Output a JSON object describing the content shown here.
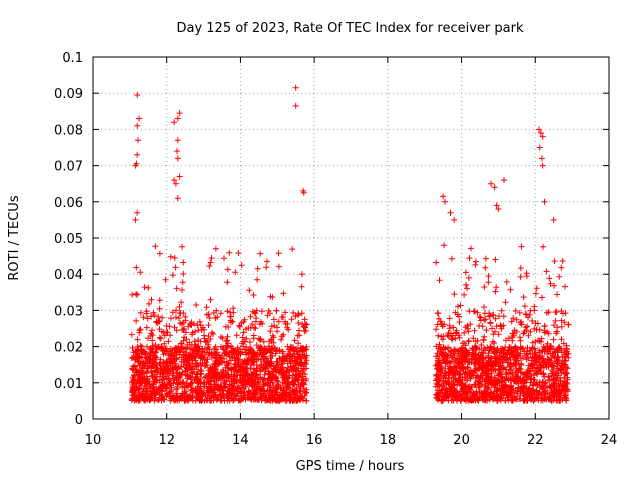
{
  "chart_data": {
    "type": "scatter",
    "title": "Day 125 of 2023, Rate Of TEC Index for receiver park",
    "xlabel": "GPS time / hours",
    "ylabel": "ROTI / TECUs",
    "xlim": [
      10,
      24
    ],
    "ylim": [
      0,
      0.1
    ],
    "x_ticks": [
      "10",
      "12",
      "14",
      "16",
      "18",
      "20",
      "22",
      "24"
    ],
    "y_ticks": [
      "0",
      "0.01",
      "0.02",
      "0.03",
      "0.04",
      "0.05",
      "0.06",
      "0.07",
      "0.08",
      "0.09",
      "0.1"
    ],
    "grid": true,
    "marker": "+",
    "color": "#ff0000",
    "series": [
      {
        "segments": [
          {
            "x_start": 11.05,
            "x_end": 15.8
          },
          {
            "x_start": 19.3,
            "x_end": 22.9
          }
        ],
        "outliers": [
          [
            11.2,
            0.0895
          ],
          [
            11.25,
            0.083
          ],
          [
            11.2,
            0.081
          ],
          [
            11.22,
            0.077
          ],
          [
            11.2,
            0.073
          ],
          [
            11.15,
            0.07
          ],
          [
            11.18,
            0.0705
          ],
          [
            11.2,
            0.057
          ],
          [
            11.15,
            0.055
          ],
          [
            12.2,
            0.082
          ],
          [
            12.3,
            0.083
          ],
          [
            12.35,
            0.0845
          ],
          [
            12.3,
            0.077
          ],
          [
            12.28,
            0.074
          ],
          [
            12.3,
            0.072
          ],
          [
            12.2,
            0.066
          ],
          [
            12.25,
            0.065
          ],
          [
            12.35,
            0.067
          ],
          [
            12.3,
            0.061
          ],
          [
            15.5,
            0.0915
          ],
          [
            15.5,
            0.0865
          ],
          [
            15.7,
            0.063
          ],
          [
            15.72,
            0.0625
          ],
          [
            19.5,
            0.0615
          ],
          [
            19.55,
            0.06
          ],
          [
            19.7,
            0.057
          ],
          [
            19.8,
            0.055
          ],
          [
            20.8,
            0.065
          ],
          [
            20.9,
            0.064
          ],
          [
            21.15,
            0.066
          ],
          [
            20.95,
            0.059
          ],
          [
            21.0,
            0.058
          ],
          [
            22.1,
            0.08
          ],
          [
            22.15,
            0.079
          ],
          [
            22.2,
            0.078
          ],
          [
            22.12,
            0.075
          ],
          [
            22.18,
            0.072
          ],
          [
            22.2,
            0.07
          ],
          [
            22.25,
            0.06
          ],
          [
            22.5,
            0.055
          ]
        ]
      }
    ]
  }
}
